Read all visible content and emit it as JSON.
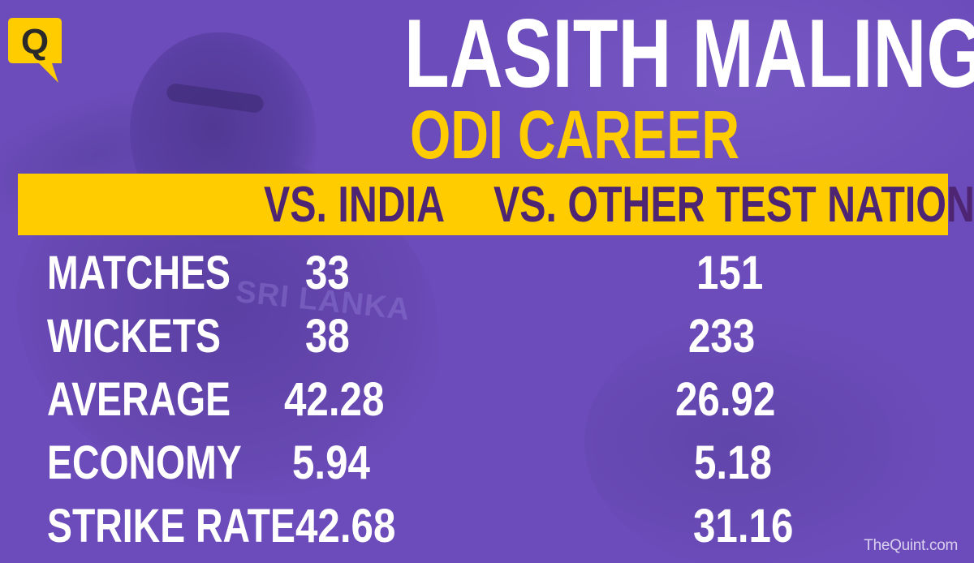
{
  "brand": {
    "logo_letter": "Q",
    "watermark": "TheQuint.com"
  },
  "headline": {
    "title": "LASITH MALINGA",
    "subtitle": "ODI CAREER"
  },
  "background": {
    "jersey_text": "SRI LANKA"
  },
  "colors": {
    "background": "#6c4cba",
    "accent_yellow": "#ffcc00",
    "header_text": "#4d2573",
    "text": "#ffffff"
  },
  "table": {
    "columns": [
      "VS. INDIA",
      "VS. OTHER TEST NATIONS"
    ],
    "rows": [
      {
        "label": "MATCHES",
        "india": "33",
        "other": "151"
      },
      {
        "label": "WICKETS",
        "india": "38",
        "other": "233"
      },
      {
        "label": "AVERAGE",
        "india": "42.28",
        "other": "26.92"
      },
      {
        "label": "ECONOMY",
        "india": "5.94",
        "other": "5.18"
      },
      {
        "label": "STRIKE RATE",
        "india": "42.68",
        "other": "31.16"
      }
    ]
  }
}
